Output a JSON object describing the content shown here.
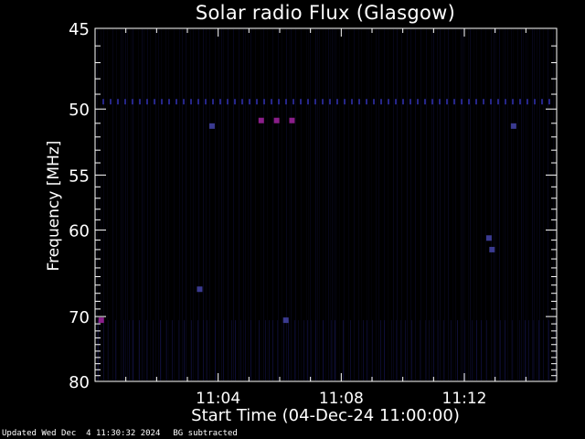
{
  "chart_data": {
    "type": "heatmap",
    "title": "Solar radio Flux (Glasgow)",
    "xlabel": "Start Time (04-Dec-24 11:00:00)",
    "ylabel": "Frequency [MHz]",
    "x_range_minutes": [
      0,
      15
    ],
    "x_ticks": [
      {
        "minute": 4,
        "label": "11:04"
      },
      {
        "minute": 8,
        "label": "11:08"
      },
      {
        "minute": 12,
        "label": "11:12"
      }
    ],
    "y_range_mhz": [
      45,
      80
    ],
    "y_scale": "reciprocal",
    "y_ticks": [
      {
        "mhz": 45,
        "label": "45"
      },
      {
        "mhz": 50,
        "label": "50"
      },
      {
        "mhz": 55,
        "label": "55"
      },
      {
        "mhz": 60,
        "label": "60"
      },
      {
        "mhz": 70,
        "label": "70"
      },
      {
        "mhz": 80,
        "label": "80"
      }
    ],
    "background_color": "#000000",
    "axis_color": "#ffffff",
    "band_color": "#1a1a66",
    "burst_color": "#8a1e8a",
    "hot_band_mhz": 49.5,
    "features": [
      {
        "minute": 0.2,
        "mhz": 70.5,
        "color": "#8a1e8a"
      },
      {
        "minute": 3.4,
        "mhz": 66.5,
        "color": "#3a3a90"
      },
      {
        "minute": 3.8,
        "mhz": 51.2,
        "color": "#3a3a90"
      },
      {
        "minute": 5.4,
        "mhz": 50.8,
        "color": "#8a1e8a"
      },
      {
        "minute": 5.9,
        "mhz": 50.8,
        "color": "#8a1e8a"
      },
      {
        "minute": 6.4,
        "mhz": 50.8,
        "color": "#8a1e8a"
      },
      {
        "minute": 6.2,
        "mhz": 70.5,
        "color": "#3a3a90"
      },
      {
        "minute": 12.8,
        "mhz": 60.8,
        "color": "#3a3a90"
      },
      {
        "minute": 12.9,
        "mhz": 62.0,
        "color": "#3a3a90"
      },
      {
        "minute": 13.6,
        "mhz": 51.2,
        "color": "#3a3a90"
      }
    ]
  },
  "footer": {
    "updated": "Updated Wed Dec  4 11:30:32 2024",
    "note": "BG subtracted"
  }
}
